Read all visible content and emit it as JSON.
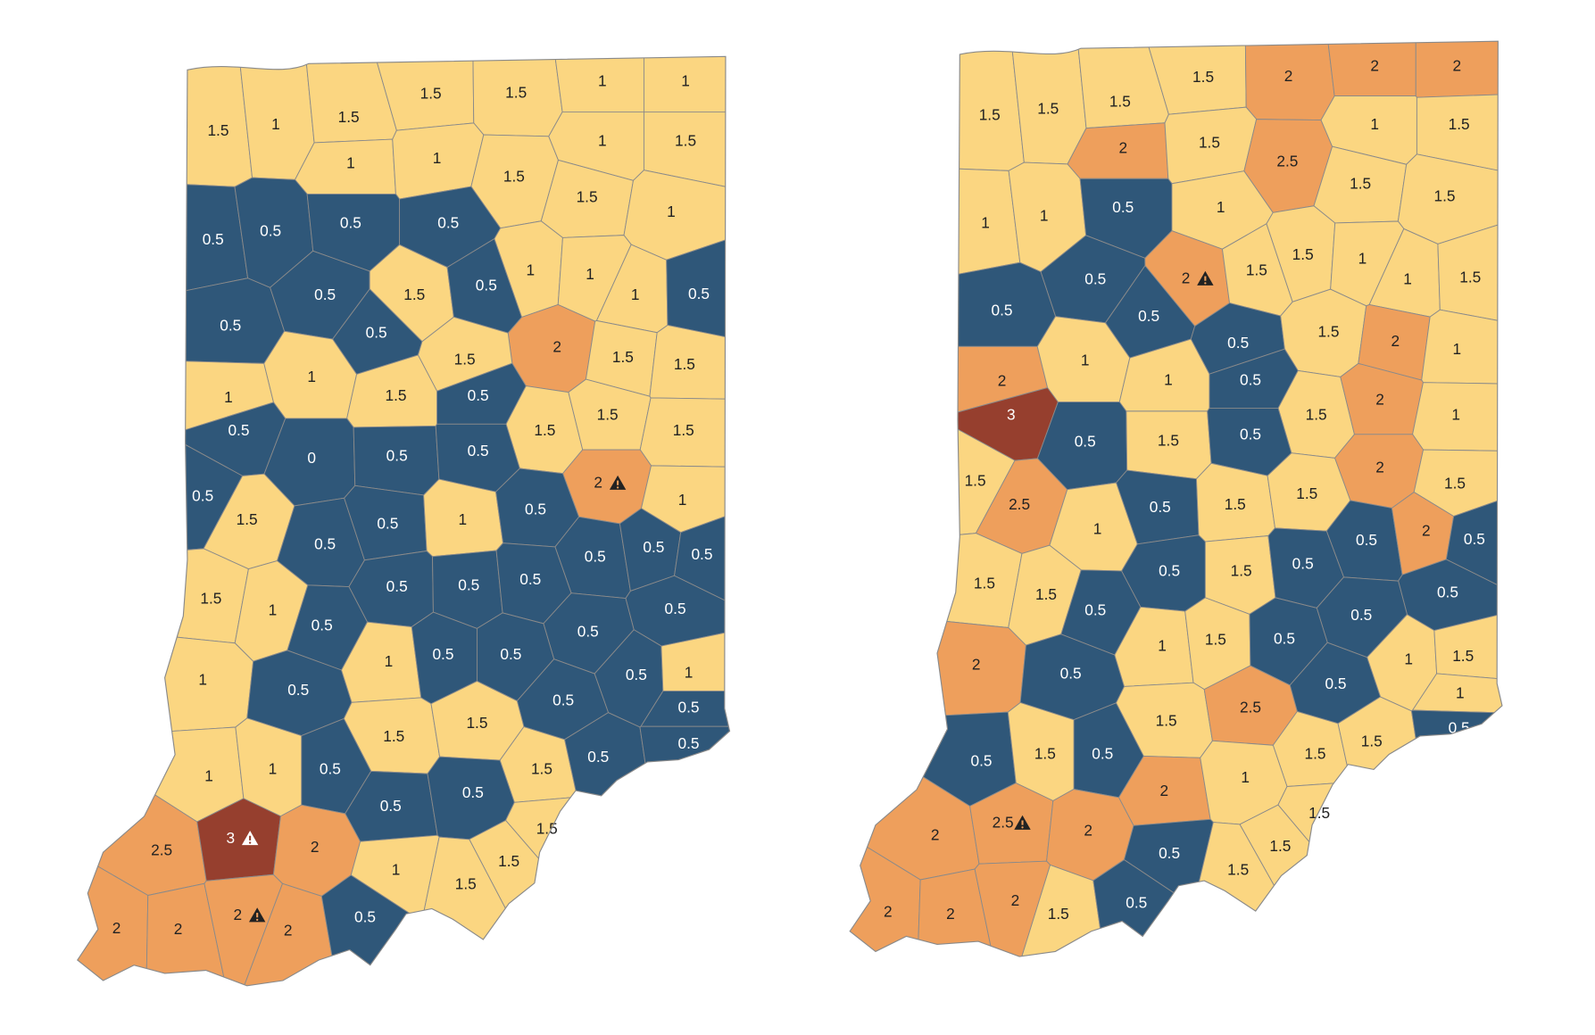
{
  "colors": {
    "0": {
      "fill": "#2f5779",
      "text": "#ffffff"
    },
    "0.5": {
      "fill": "#2f5779",
      "text": "#ffffff"
    },
    "1": {
      "fill": "#fbd681",
      "text": "#222222"
    },
    "1.5": {
      "fill": "#fbd681",
      "text": "#222222"
    },
    "2": {
      "fill": "#ee9f5c",
      "text": "#222222"
    },
    "2.5": {
      "fill": "#ee9f5c",
      "text": "#222222"
    },
    "3": {
      "fill": "#963f2e",
      "text": "#ffffff"
    }
  },
  "maps": [
    {
      "counties": [
        {
          "value": 1.5
        },
        {
          "value": 1
        },
        {
          "value": 1.5
        },
        {
          "value": 1.5
        },
        {
          "value": 1.5
        },
        {
          "value": 1
        },
        {
          "value": 1
        },
        {
          "value": 1
        },
        {
          "value": 1
        },
        {
          "value": 1.5
        },
        {
          "value": 1
        },
        {
          "value": 1.5
        },
        {
          "value": 1.5
        },
        {
          "value": 1
        },
        {
          "value": 0.5
        },
        {
          "value": 0.5
        },
        {
          "value": 0.5
        },
        {
          "value": 0.5
        },
        {
          "value": 0.5
        },
        {
          "value": 1.5
        },
        {
          "value": 0.5
        },
        {
          "value": 1
        },
        {
          "value": 1
        },
        {
          "value": 1
        },
        {
          "value": 0.5
        },
        {
          "value": 0.5
        },
        {
          "value": 0.5
        },
        {
          "value": 2
        },
        {
          "value": 1.5
        },
        {
          "value": 1.5
        },
        {
          "value": 1.5
        },
        {
          "value": 1
        },
        {
          "value": 1
        },
        {
          "value": 1.5
        },
        {
          "value": 0.5
        },
        {
          "value": 0.5
        },
        {
          "value": 1.5
        },
        {
          "value": 1.5
        },
        {
          "value": 1.5
        },
        {
          "value": 0
        },
        {
          "value": 0.5
        },
        {
          "value": 0.5
        },
        {
          "value": 2,
          "warning": true
        },
        {
          "value": 0.5
        },
        {
          "value": 1
        },
        {
          "value": 1.5
        },
        {
          "value": 0.5
        },
        {
          "value": 0.5
        },
        {
          "value": 1
        },
        {
          "value": 0.5
        },
        {
          "value": 0.5
        },
        {
          "value": 0.5
        },
        {
          "value": 0.5
        },
        {
          "value": 1.5
        },
        {
          "value": 1
        },
        {
          "value": 0.5
        },
        {
          "value": 0.5
        },
        {
          "value": 0.5
        },
        {
          "value": 0.5
        },
        {
          "value": 0.5
        },
        {
          "value": 0.5
        },
        {
          "value": 1
        },
        {
          "value": 0.5
        },
        {
          "value": 1
        },
        {
          "value": 0.5
        },
        {
          "value": 0.5
        },
        {
          "value": 0.5
        },
        {
          "value": 1
        },
        {
          "value": 0.5
        },
        {
          "value": 0.5
        },
        {
          "value": 1.5
        },
        {
          "value": 1.5
        },
        {
          "value": 0.5
        },
        {
          "value": 1
        },
        {
          "value": 1
        },
        {
          "value": 1.5
        },
        {
          "value": 0.5
        },
        {
          "value": 0.5
        },
        {
          "value": 0.5
        },
        {
          "value": 0.5
        },
        {
          "value": 2.5
        },
        {
          "value": 3,
          "warning": true
        },
        {
          "value": 2
        },
        {
          "value": 1.5
        },
        {
          "value": 1
        },
        {
          "value": 1.5
        },
        {
          "value": 1.5
        },
        {
          "value": 2
        },
        {
          "value": 2
        },
        {
          "value": 2,
          "warning": true
        },
        {
          "value": 2
        },
        {
          "value": 0.5
        }
      ]
    },
    {
      "counties": [
        {
          "value": 1.5
        },
        {
          "value": 1.5
        },
        {
          "value": 1.5
        },
        {
          "value": 1.5
        },
        {
          "value": 2
        },
        {
          "value": 2
        },
        {
          "value": 2
        },
        {
          "value": 2
        },
        {
          "value": 1.5
        },
        {
          "value": 2.5
        },
        {
          "value": 1
        },
        {
          "value": 1.5
        },
        {
          "value": 1.5
        },
        {
          "value": 1.5
        },
        {
          "value": 1
        },
        {
          "value": 1
        },
        {
          "value": 0.5
        },
        {
          "value": 1
        },
        {
          "value": 0.5
        },
        {
          "value": 2,
          "warning": true
        },
        {
          "value": 1.5
        },
        {
          "value": 1.5
        },
        {
          "value": 1
        },
        {
          "value": 1
        },
        {
          "value": 1.5
        },
        {
          "value": 0.5
        },
        {
          "value": 0.5
        },
        {
          "value": 0.5
        },
        {
          "value": 1.5
        },
        {
          "value": 2
        },
        {
          "value": 1
        },
        {
          "value": 2
        },
        {
          "value": 1
        },
        {
          "value": 1
        },
        {
          "value": 0.5
        },
        {
          "value": 3
        },
        {
          "value": 1.5
        },
        {
          "value": 2
        },
        {
          "value": 1
        },
        {
          "value": 0.5
        },
        {
          "value": 1.5
        },
        {
          "value": 0.5
        },
        {
          "value": 2
        },
        {
          "value": 1.5
        },
        {
          "value": 1.5
        },
        {
          "value": 2.5
        },
        {
          "value": 1
        },
        {
          "value": 0.5
        },
        {
          "value": 1.5
        },
        {
          "value": 1.5
        },
        {
          "value": 0.5
        },
        {
          "value": 2
        },
        {
          "value": 0.5
        },
        {
          "value": 1.5
        },
        {
          "value": 1.5
        },
        {
          "value": 0.5
        },
        {
          "value": 1.5
        },
        {
          "value": 0.5
        },
        {
          "value": 0.5
        },
        {
          "value": 0.5
        },
        {
          "value": 0.5
        },
        {
          "value": 2
        },
        {
          "value": 0.5
        },
        {
          "value": 1
        },
        {
          "value": 1.5
        },
        {
          "value": 0.5
        },
        {
          "value": 1
        },
        {
          "value": 1.5
        },
        {
          "value": 0.5
        },
        {
          "value": 1
        },
        {
          "value": 1.5
        },
        {
          "value": 2.5
        },
        {
          "value": 0.5
        },
        {
          "value": 0.5
        },
        {
          "value": 1.5
        },
        {
          "value": 1.5
        },
        {
          "value": 1.5
        },
        {
          "value": 0.5
        },
        {
          "value": 2
        },
        {
          "value": 1
        },
        {
          "value": 2
        },
        {
          "value": 2.5,
          "warning": true
        },
        {
          "value": 2
        },
        {
          "value": 1.5
        },
        {
          "value": 0.5
        },
        {
          "value": 1.5
        },
        {
          "value": 1.5
        },
        {
          "value": 2
        },
        {
          "value": 2
        },
        {
          "value": 2
        },
        {
          "value": 1.5
        },
        {
          "value": 0.5
        }
      ]
    }
  ]
}
